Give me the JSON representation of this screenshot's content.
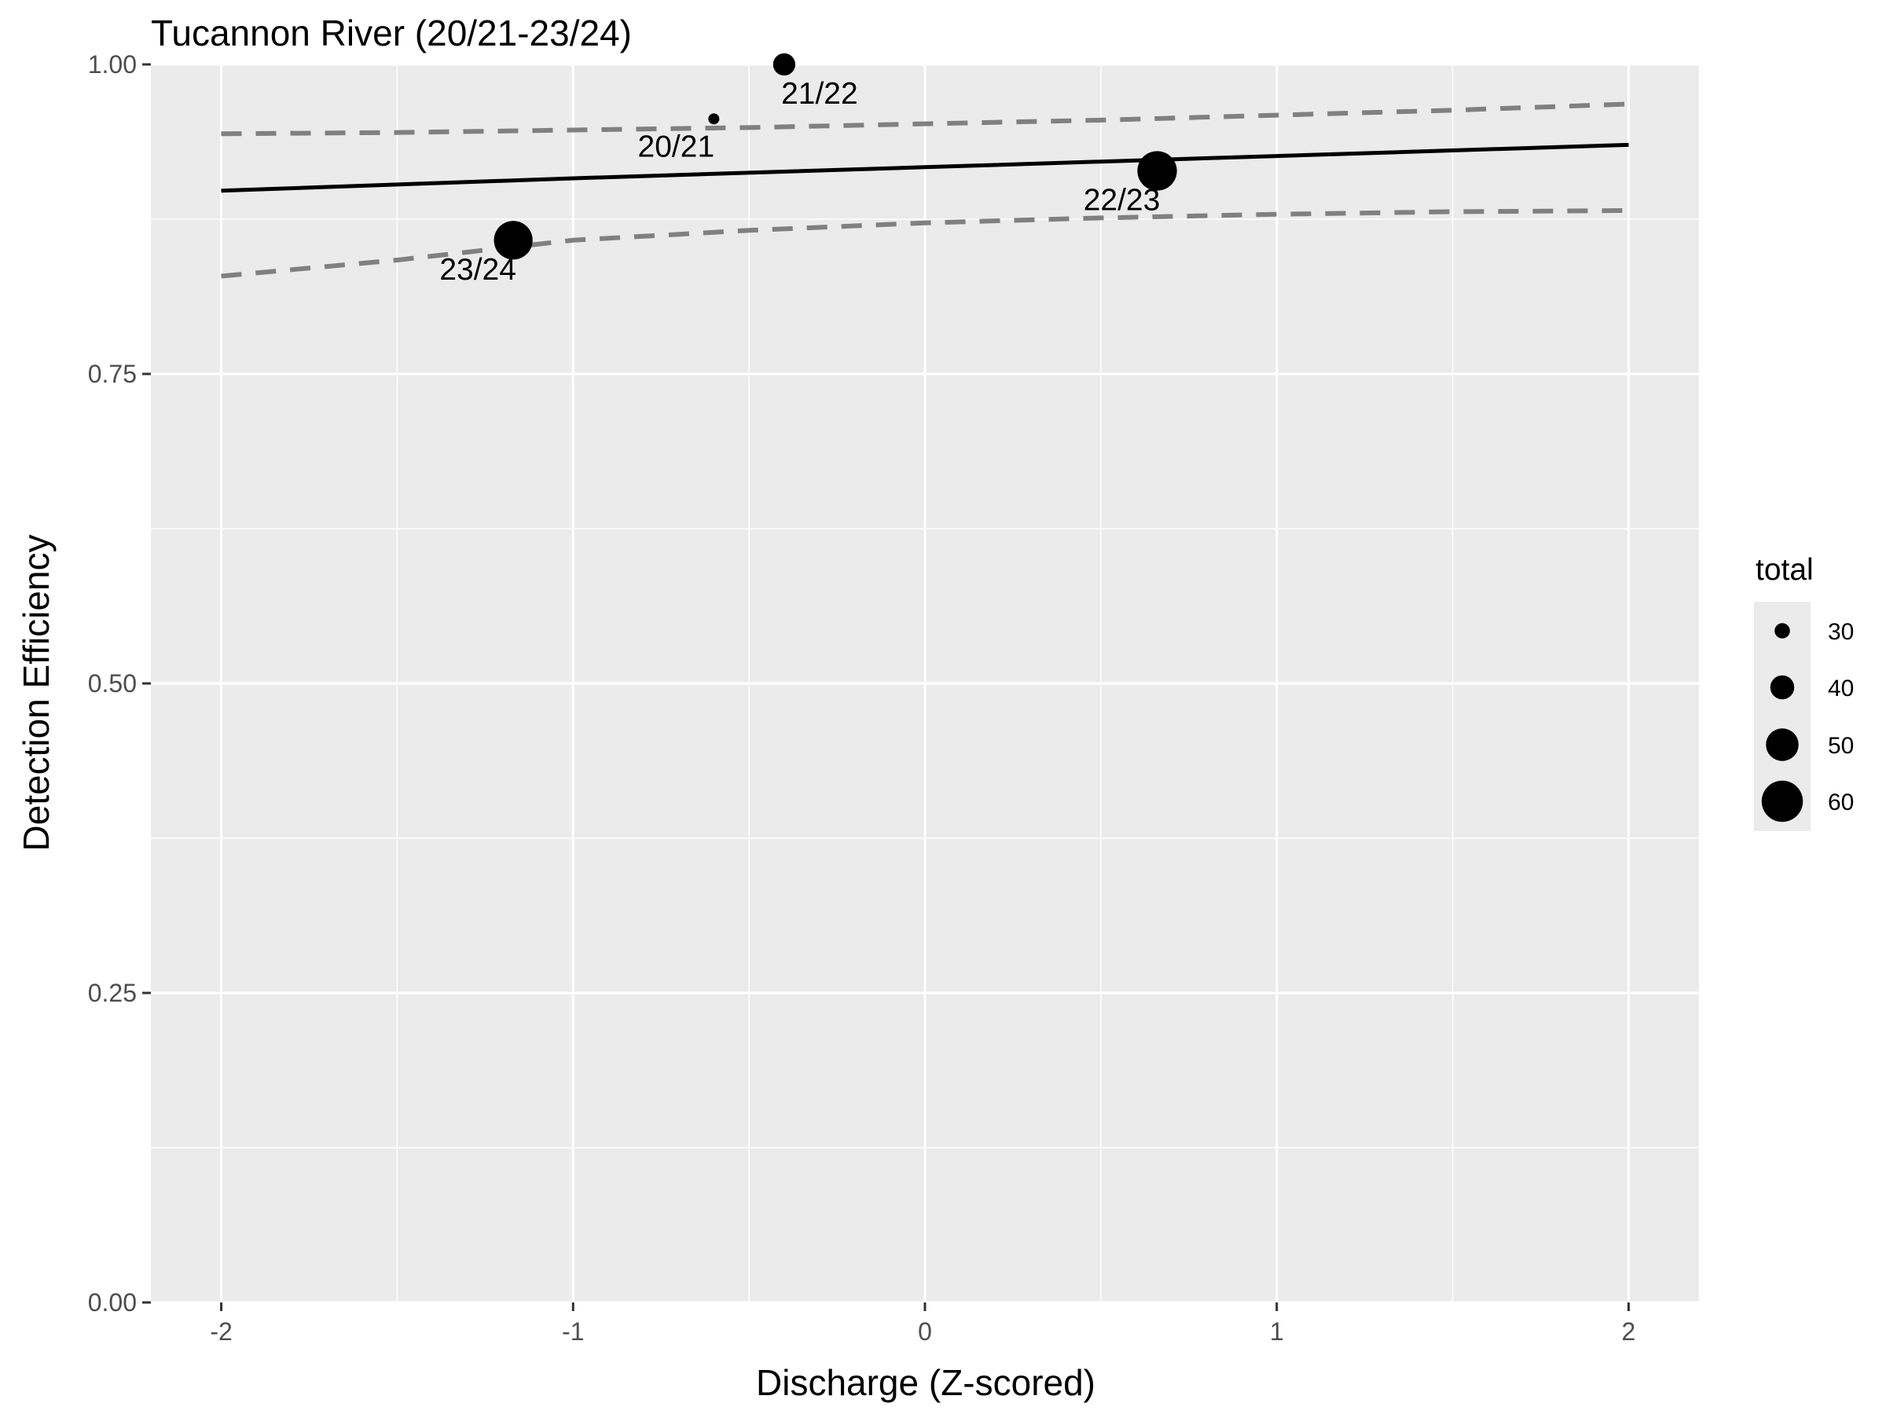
{
  "chart_data": {
    "type": "scatter",
    "title": "Tucannon River (20/21-23/24)",
    "xlabel": "Discharge (Z-scored)",
    "ylabel": "Detection Efficiency",
    "xlim": [
      -2.2,
      2.2
    ],
    "ylim": [
      0,
      1
    ],
    "x_ticks": [
      -2,
      -1,
      0,
      1,
      2
    ],
    "x_tick_labels": [
      "-2",
      "-1",
      "0",
      "1",
      "2"
    ],
    "y_ticks": [
      0,
      0.25,
      0.5,
      0.75,
      1
    ],
    "y_tick_labels": [
      "0.00",
      "0.25",
      "0.50",
      "0.75",
      "1.00"
    ],
    "grid": true,
    "points": [
      {
        "label": "20/21",
        "x": -0.6,
        "y": 0.956,
        "total": 25
      },
      {
        "label": "21/22",
        "x": -0.4,
        "y": 1.0,
        "total": 38
      },
      {
        "label": "22/23",
        "x": 0.66,
        "y": 0.914,
        "total": 58
      },
      {
        "label": "23/24",
        "x": -1.17,
        "y": 0.858,
        "total": 57
      }
    ],
    "fit_line": {
      "x": [
        -2,
        -1,
        0,
        1,
        2
      ],
      "y": [
        0.898,
        0.908,
        0.917,
        0.926,
        0.935
      ]
    },
    "ci_upper": {
      "x": [
        -2,
        -1.5,
        -1,
        -0.5,
        0,
        0.5,
        1,
        1.5,
        2
      ],
      "y": [
        0.944,
        0.945,
        0.947,
        0.949,
        0.952,
        0.955,
        0.959,
        0.963,
        0.968
      ]
    },
    "ci_lower": {
      "x": [
        -2,
        -1.5,
        -1,
        -0.5,
        0,
        0.5,
        1,
        1.5,
        2
      ],
      "y": [
        0.829,
        0.842,
        0.858,
        0.866,
        0.872,
        0.876,
        0.879,
        0.881,
        0.882
      ]
    },
    "legend": {
      "title": "total",
      "position": "right",
      "entries": [
        {
          "label": "30",
          "value": 30
        },
        {
          "label": "40",
          "value": 40
        },
        {
          "label": "50",
          "value": 50
        },
        {
          "label": "60",
          "value": 60
        }
      ]
    },
    "colors": {
      "panel": "#ebebeb",
      "grid": "#ffffff",
      "points": "#000000",
      "fit": "#000000",
      "ci": "#808080"
    }
  }
}
